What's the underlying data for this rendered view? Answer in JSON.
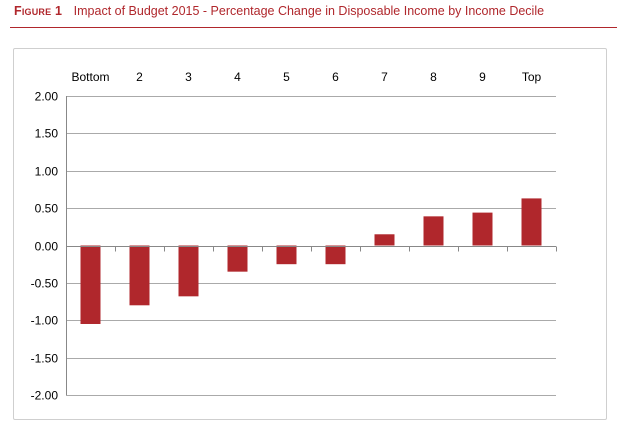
{
  "figure": {
    "label": "Figure 1",
    "title": "Impact of Budget 2015 - Percentage Change in Disposable Income by Income Decile"
  },
  "chart_data": {
    "type": "bar",
    "title": "Impact of Budget 2015 - Percentage Change in Disposable Income by Income Decile",
    "xlabel": "",
    "ylabel": "",
    "categories": [
      "Bottom",
      "2",
      "3",
      "4",
      "5",
      "6",
      "7",
      "8",
      "9",
      "Top"
    ],
    "series": [
      {
        "name": "Percentage change in disposable income",
        "values": [
          -1.05,
          -0.8,
          -0.68,
          -0.35,
          -0.25,
          -0.25,
          0.15,
          0.39,
          0.44,
          0.63
        ]
      }
    ],
    "ylim": [
      -2.0,
      2.0
    ],
    "yticks": [
      2.0,
      1.5,
      1.0,
      0.5,
      0.0,
      -0.5,
      -1.0,
      -1.5,
      -2.0
    ],
    "ytick_labels": [
      "2.00",
      "1.50",
      "1.00",
      "0.50",
      "0.00",
      "-0.50",
      "-1.00",
      "-1.50",
      "-2.00"
    ],
    "grid": true,
    "category_labels_position": "top",
    "bar_color": "#b0272c",
    "grid_color": "#aaaaaa",
    "axis_color": "#888888"
  }
}
